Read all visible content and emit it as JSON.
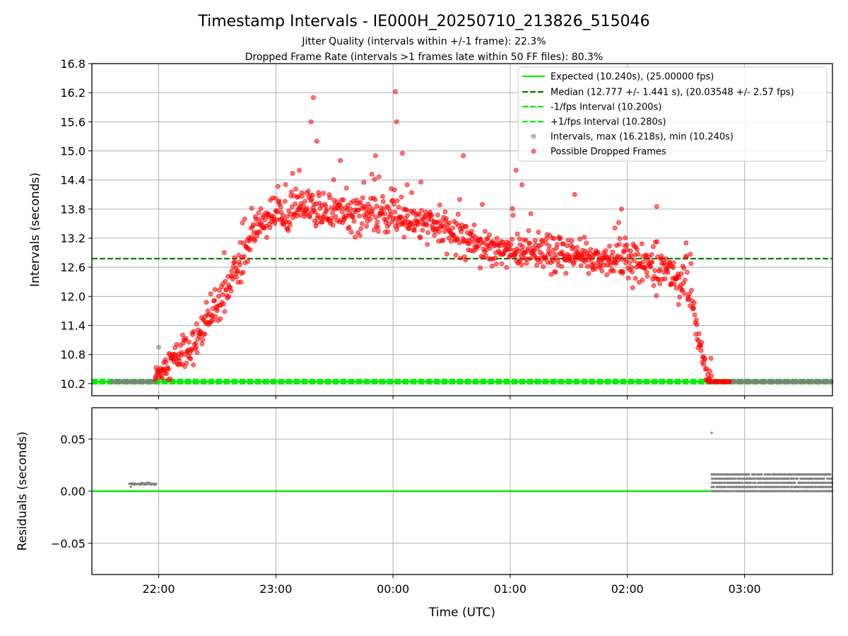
{
  "title": "Timestamp Intervals - IE000H_20250710_213826_515046",
  "subtitle_1": "Jitter Quality (intervals within +/-1 frame): 22.3%",
  "subtitle_2": "Dropped Frame Rate (intervals >1 frames late within 50 FF files): 80.3%",
  "chart_data": [
    {
      "type": "scatter",
      "ylabel": "Intervals (seconds)",
      "xlabel": "",
      "xlim_hours": [
        21.43,
        27.75
      ],
      "ylim": [
        9.95,
        16.8
      ],
      "y_ticks": [
        10.2,
        10.8,
        11.4,
        12.0,
        12.6,
        13.2,
        13.8,
        14.4,
        15.0,
        15.6,
        16.2,
        16.8
      ],
      "y_tick_labels": [
        "10.2",
        "10.8",
        "11.4",
        "12.0",
        "12.6",
        "13.2",
        "13.8",
        "14.4",
        "15.0",
        "15.6",
        "16.2",
        "16.8"
      ],
      "x_ticks_hours": [
        22,
        23,
        24,
        25,
        26,
        27
      ],
      "grid": true,
      "legend_position": "upper-right",
      "legend": [
        "Expected (10.240s), (25.00000 fps)",
        "Median (12.777 +/- 1.441 s), (20.03548 +/- 2.57 fps)",
        "-1/fps Interval (10.200s)",
        "+1/fps Interval (10.280s)",
        "Intervals, max (16.218s), min (10.240s)",
        "Possible Dropped Frames"
      ],
      "reference_lines": {
        "expected": 10.24,
        "median": 12.777,
        "minus_fps": 10.2,
        "plus_fps": 10.28
      },
      "trend_hours": [
        21.6,
        21.95,
        22.0,
        22.3,
        22.5,
        22.7,
        22.85,
        23.0,
        23.2,
        23.5,
        24.0,
        24.4,
        24.8,
        25.2,
        25.6,
        26.0,
        26.3,
        26.5,
        26.58,
        26.62,
        26.66,
        26.7,
        27.75
      ],
      "trend_values": [
        10.24,
        10.24,
        10.45,
        11.0,
        11.8,
        12.7,
        13.5,
        13.72,
        13.82,
        13.72,
        13.65,
        13.4,
        13.05,
        12.85,
        12.8,
        12.72,
        12.6,
        12.2,
        11.6,
        11.0,
        10.6,
        10.24,
        10.24
      ],
      "outlier_hours": [
        22.0,
        23.2,
        23.3,
        23.32,
        23.35,
        23.55,
        23.85,
        24.02,
        24.03,
        24.08,
        24.12,
        24.6,
        25.05,
        25.1,
        25.55,
        25.95,
        26.25
      ],
      "outlier_values": [
        10.95,
        14.6,
        15.6,
        16.1,
        15.2,
        14.8,
        14.9,
        16.22,
        15.6,
        14.95,
        14.3,
        14.9,
        14.6,
        14.3,
        14.1,
        13.8,
        13.85
      ],
      "series": [
        {
          "name": "Intervals, max (16.218s), min (10.240s)",
          "color": "#808080"
        },
        {
          "name": "Possible Dropped Frames",
          "color": "#ff0000"
        }
      ]
    },
    {
      "type": "scatter",
      "ylabel": "Residuals (seconds)",
      "xlabel": "Time (UTC)",
      "xlim_hours": [
        21.43,
        27.75
      ],
      "ylim": [
        -0.08,
        0.08
      ],
      "y_ticks": [
        -0.05,
        0.0,
        0.05
      ],
      "y_tick_labels": [
        "−0.05",
        "0.00",
        "0.05"
      ],
      "x_ticks_hours": [
        22,
        23,
        24,
        25,
        26,
        27
      ],
      "x_tick_labels": [
        "22:00",
        "23:00",
        "00:00",
        "01:00",
        "02:00",
        "03:00"
      ],
      "grid": true,
      "zero_line_color": "#00ee00",
      "early_segment_hours": [
        21.75,
        21.98
      ],
      "early_segment_value": 0.007,
      "late_segment_hours": [
        26.72,
        27.75
      ],
      "late_segment_range": [
        0.0,
        0.016
      ],
      "outlier_hours": [
        21.98,
        26.72
      ],
      "outlier_values": [
        0.079,
        0.056
      ]
    }
  ],
  "colors": {
    "expected": "#00ee00",
    "median": "#008000",
    "bounds": "#00ee00",
    "dropped": "#ff0000",
    "normal": "#808080"
  }
}
